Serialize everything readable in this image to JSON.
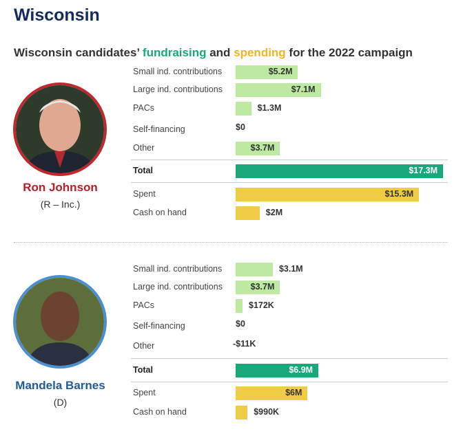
{
  "title": "Wisconsin",
  "subtitle": {
    "pre": "Wisconsin candidates’ ",
    "fundraising": "fundraising",
    "mid": " and ",
    "spending": "spending",
    "post": " for the 2022 campaign"
  },
  "colors": {
    "contribution": "#bde9a0",
    "total": "#1aa87b",
    "spending": "#f0cb45",
    "johnson": "#c0282d",
    "barnes": "#4a90d0"
  },
  "chart_data": [
    {
      "type": "bar",
      "candidate": "Ron Johnson",
      "party": "(R – Inc.)",
      "categories": [
        "Small ind. contributions",
        "Large ind. contributions",
        "PACs",
        "Self-financing",
        "Other",
        "Total",
        "Spent",
        "Cash on hand"
      ],
      "values": [
        5.2,
        7.1,
        1.3,
        0,
        3.7,
        17.3,
        15.3,
        2.0
      ],
      "labels": [
        "$5.2M",
        "$7.1M",
        "$1.3M",
        "$0",
        "$3.7M",
        "$17.3M",
        "$15.3M",
        "$2M"
      ],
      "unit": "million USD"
    },
    {
      "type": "bar",
      "candidate": "Mandela Barnes",
      "party": "(D)",
      "categories": [
        "Small ind. contributions",
        "Large ind. contributions",
        "PACs",
        "Self-financing",
        "Other",
        "Total",
        "Spent",
        "Cash on hand"
      ],
      "values": [
        3.1,
        3.7,
        0.172,
        0,
        -0.011,
        6.9,
        6.0,
        0.99
      ],
      "labels": [
        "$3.1M",
        "$3.7M",
        "$172K",
        "$0",
        "-$11K",
        "$6.9M",
        "$6M",
        "$990K"
      ],
      "unit": "million USD"
    }
  ]
}
